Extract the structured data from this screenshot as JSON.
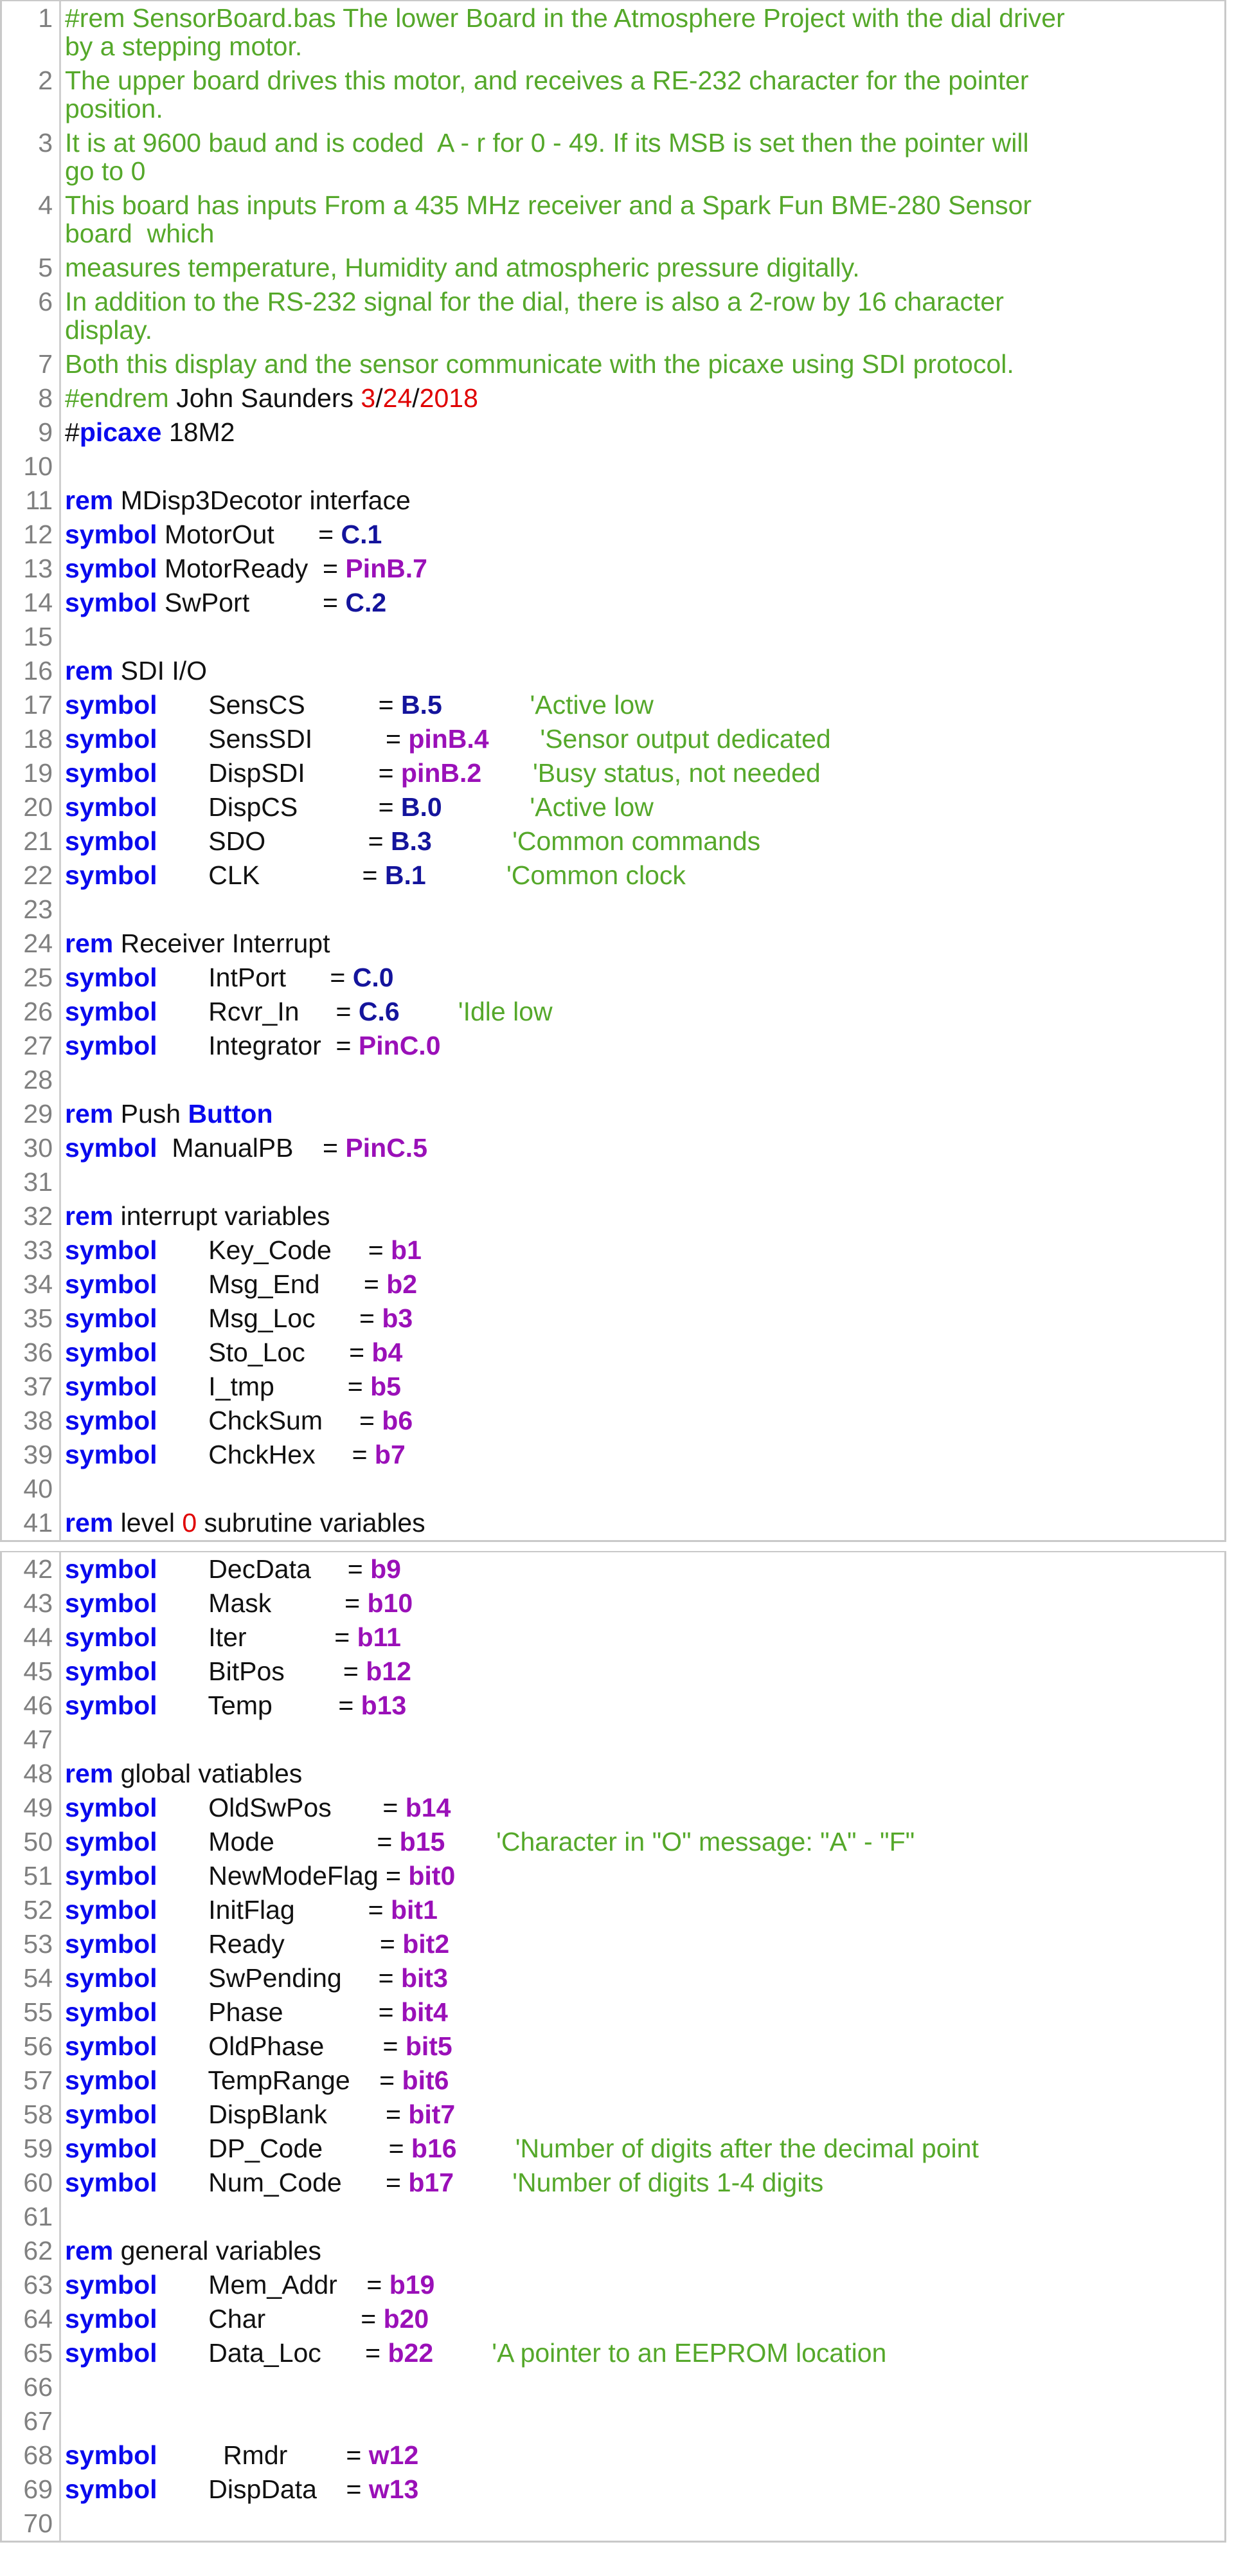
{
  "colors": {
    "comment": "#55a82a",
    "keyword": "#0a0aee",
    "variable": "#9a10b8",
    "pin": "#14149c",
    "number": "#e00000",
    "line_number": "#808080"
  },
  "panels": [
    {
      "lines": [
        {
          "n": "1",
          "tokens": [
            [
              "c",
              "#rem SensorBoard.bas The lower Board in the Atmosphere Project with the dial driver\nby a stepping motor."
            ]
          ]
        },
        {
          "n": "2",
          "tokens": [
            [
              "c",
              "The upper board drives this motor, and receives a RE-232 character for the pointer\nposition."
            ]
          ]
        },
        {
          "n": "3",
          "tokens": [
            [
              "c",
              "It is at 9600 baud and is coded  A - r for 0 - 49. If its MSB is set then the pointer will\ngo to 0"
            ]
          ]
        },
        {
          "n": "4",
          "tokens": [
            [
              "c",
              "This board has inputs From a 435 MHz receiver and a Spark Fun BME-280 Sensor\nboard  which"
            ]
          ]
        },
        {
          "n": "5",
          "tokens": [
            [
              "c",
              "measures temperature, Humidity and atmospheric pressure digitally."
            ]
          ]
        },
        {
          "n": "6",
          "tokens": [
            [
              "c",
              "In addition to the RS-232 signal for the dial, there is also a 2-row by 16 character\ndisplay."
            ]
          ]
        },
        {
          "n": "7",
          "tokens": [
            [
              "c",
              "Both this display and the sensor communicate with the picaxe using SDI protocol."
            ]
          ]
        },
        {
          "n": "8",
          "tokens": [
            [
              "c",
              "#endrem"
            ],
            [
              "t",
              " John Saunders "
            ],
            [
              "r",
              "3"
            ],
            [
              "t",
              "/"
            ],
            [
              "r",
              "24"
            ],
            [
              "t",
              "/"
            ],
            [
              "r",
              "2018"
            ]
          ]
        },
        {
          "n": "9",
          "tokens": [
            [
              "t",
              "#"
            ],
            [
              "k",
              "picaxe"
            ],
            [
              "t",
              " 18M2"
            ]
          ]
        },
        {
          "n": "10",
          "tokens": []
        },
        {
          "n": "11",
          "tokens": [
            [
              "k",
              "rem"
            ],
            [
              "t",
              " MDisp3Decotor interface"
            ]
          ]
        },
        {
          "n": "12",
          "tokens": [
            [
              "k",
              "symbol"
            ],
            [
              "t",
              " MotorOut      = "
            ],
            [
              "n",
              "C.1"
            ]
          ]
        },
        {
          "n": "13",
          "tokens": [
            [
              "k",
              "symbol"
            ],
            [
              "t",
              " MotorReady  = "
            ],
            [
              "p",
              "PinB.7"
            ]
          ]
        },
        {
          "n": "14",
          "tokens": [
            [
              "k",
              "symbol"
            ],
            [
              "t",
              " SwPort          = "
            ],
            [
              "n",
              "C.2"
            ]
          ]
        },
        {
          "n": "15",
          "tokens": []
        },
        {
          "n": "16",
          "tokens": [
            [
              "k",
              "rem"
            ],
            [
              "t",
              " SDI I/O"
            ]
          ]
        },
        {
          "n": "17",
          "tokens": [
            [
              "k",
              "symbol"
            ],
            [
              "t",
              "       SensCS          = "
            ],
            [
              "n",
              "B.5"
            ],
            [
              "c",
              "            'Active low"
            ]
          ]
        },
        {
          "n": "18",
          "tokens": [
            [
              "k",
              "symbol"
            ],
            [
              "t",
              "       SensSDI          = "
            ],
            [
              "p",
              "pinB.4"
            ],
            [
              "c",
              "       'Sensor output dedicated"
            ]
          ]
        },
        {
          "n": "19",
          "tokens": [
            [
              "k",
              "symbol"
            ],
            [
              "t",
              "       DispSDI          = "
            ],
            [
              "p",
              "pinB.2"
            ],
            [
              "c",
              "       'Busy status, not needed"
            ]
          ]
        },
        {
          "n": "20",
          "tokens": [
            [
              "k",
              "symbol"
            ],
            [
              "t",
              "       DispCS           = "
            ],
            [
              "n",
              "B.0"
            ],
            [
              "c",
              "            'Active low"
            ]
          ]
        },
        {
          "n": "21",
          "tokens": [
            [
              "k",
              "symbol"
            ],
            [
              "t",
              "       SDO              = "
            ],
            [
              "n",
              "B.3"
            ],
            [
              "c",
              "           'Common commands"
            ]
          ]
        },
        {
          "n": "22",
          "tokens": [
            [
              "k",
              "symbol"
            ],
            [
              "t",
              "       CLK              = "
            ],
            [
              "n",
              "B.1"
            ],
            [
              "c",
              "           'Common clock"
            ]
          ]
        },
        {
          "n": "23",
          "tokens": []
        },
        {
          "n": "24",
          "tokens": [
            [
              "k",
              "rem"
            ],
            [
              "t",
              " Receiver Interrupt"
            ]
          ]
        },
        {
          "n": "25",
          "tokens": [
            [
              "k",
              "symbol"
            ],
            [
              "t",
              "       IntPort      = "
            ],
            [
              "n",
              "C.0"
            ]
          ]
        },
        {
          "n": "26",
          "tokens": [
            [
              "k",
              "symbol"
            ],
            [
              "t",
              "       Rcvr_In     = "
            ],
            [
              "n",
              "C.6"
            ],
            [
              "c",
              "        'Idle low"
            ]
          ]
        },
        {
          "n": "27",
          "tokens": [
            [
              "k",
              "symbol"
            ],
            [
              "t",
              "       Integrator  = "
            ],
            [
              "p",
              "PinC.0"
            ]
          ]
        },
        {
          "n": "28",
          "tokens": []
        },
        {
          "n": "29",
          "tokens": [
            [
              "k",
              "rem"
            ],
            [
              "t",
              " Push "
            ],
            [
              "k",
              "Button"
            ]
          ]
        },
        {
          "n": "30",
          "tokens": [
            [
              "k",
              "symbol"
            ],
            [
              "t",
              "  ManualPB    = "
            ],
            [
              "p",
              "PinC.5"
            ]
          ]
        },
        {
          "n": "31",
          "tokens": []
        },
        {
          "n": "32",
          "tokens": [
            [
              "k",
              "rem"
            ],
            [
              "t",
              " interrupt variables"
            ]
          ]
        },
        {
          "n": "33",
          "tokens": [
            [
              "k",
              "symbol"
            ],
            [
              "t",
              "       Key_Code     = "
            ],
            [
              "p",
              "b1"
            ]
          ]
        },
        {
          "n": "34",
          "tokens": [
            [
              "k",
              "symbol"
            ],
            [
              "t",
              "       Msg_End      = "
            ],
            [
              "p",
              "b2"
            ]
          ]
        },
        {
          "n": "35",
          "tokens": [
            [
              "k",
              "symbol"
            ],
            [
              "t",
              "       Msg_Loc      = "
            ],
            [
              "p",
              "b3"
            ]
          ]
        },
        {
          "n": "36",
          "tokens": [
            [
              "k",
              "symbol"
            ],
            [
              "t",
              "       Sto_Loc      = "
            ],
            [
              "p",
              "b4"
            ]
          ]
        },
        {
          "n": "37",
          "tokens": [
            [
              "k",
              "symbol"
            ],
            [
              "t",
              "       I_tmp          = "
            ],
            [
              "p",
              "b5"
            ]
          ]
        },
        {
          "n": "38",
          "tokens": [
            [
              "k",
              "symbol"
            ],
            [
              "t",
              "       ChckSum     = "
            ],
            [
              "p",
              "b6"
            ]
          ]
        },
        {
          "n": "39",
          "tokens": [
            [
              "k",
              "symbol"
            ],
            [
              "t",
              "       ChckHex     = "
            ],
            [
              "p",
              "b7"
            ]
          ]
        },
        {
          "n": "40",
          "tokens": []
        },
        {
          "n": "41",
          "tokens": [
            [
              "k",
              "rem"
            ],
            [
              "t",
              " level "
            ],
            [
              "r",
              "0"
            ],
            [
              "t",
              " subrutine variables"
            ]
          ]
        }
      ]
    },
    {
      "lines": [
        {
          "n": "42",
          "tokens": [
            [
              "k",
              "symbol"
            ],
            [
              "t",
              "       DecData     = "
            ],
            [
              "p",
              "b9"
            ]
          ]
        },
        {
          "n": "43",
          "tokens": [
            [
              "k",
              "symbol"
            ],
            [
              "t",
              "       Mask          = "
            ],
            [
              "p",
              "b10"
            ]
          ]
        },
        {
          "n": "44",
          "tokens": [
            [
              "k",
              "symbol"
            ],
            [
              "t",
              "       Iter            = "
            ],
            [
              "p",
              "b11"
            ]
          ]
        },
        {
          "n": "45",
          "tokens": [
            [
              "k",
              "symbol"
            ],
            [
              "t",
              "       BitPos        = "
            ],
            [
              "p",
              "b12"
            ]
          ]
        },
        {
          "n": "46",
          "tokens": [
            [
              "k",
              "symbol"
            ],
            [
              "t",
              "       Temp         = "
            ],
            [
              "p",
              "b13"
            ]
          ]
        },
        {
          "n": "47",
          "tokens": []
        },
        {
          "n": "48",
          "tokens": [
            [
              "k",
              "rem"
            ],
            [
              "t",
              " global vatiables"
            ]
          ]
        },
        {
          "n": "49",
          "tokens": [
            [
              "k",
              "symbol"
            ],
            [
              "t",
              "       OldSwPos       = "
            ],
            [
              "p",
              "b14"
            ]
          ]
        },
        {
          "n": "50",
          "tokens": [
            [
              "k",
              "symbol"
            ],
            [
              "t",
              "       Mode              = "
            ],
            [
              "p",
              "b15"
            ],
            [
              "c",
              "       'Character in \"O\" message: \"A\" - \"F\""
            ]
          ]
        },
        {
          "n": "51",
          "tokens": [
            [
              "k",
              "symbol"
            ],
            [
              "t",
              "       NewModeFlag = "
            ],
            [
              "p",
              "bit0"
            ]
          ]
        },
        {
          "n": "52",
          "tokens": [
            [
              "k",
              "symbol"
            ],
            [
              "t",
              "       InitFlag          = "
            ],
            [
              "p",
              "bit1"
            ]
          ]
        },
        {
          "n": "53",
          "tokens": [
            [
              "k",
              "symbol"
            ],
            [
              "t",
              "       Ready             = "
            ],
            [
              "p",
              "bit2"
            ]
          ]
        },
        {
          "n": "54",
          "tokens": [
            [
              "k",
              "symbol"
            ],
            [
              "t",
              "       SwPending     = "
            ],
            [
              "p",
              "bit3"
            ]
          ]
        },
        {
          "n": "55",
          "tokens": [
            [
              "k",
              "symbol"
            ],
            [
              "t",
              "       Phase             = "
            ],
            [
              "p",
              "bit4"
            ]
          ]
        },
        {
          "n": "56",
          "tokens": [
            [
              "k",
              "symbol"
            ],
            [
              "t",
              "       OldPhase        = "
            ],
            [
              "p",
              "bit5"
            ]
          ]
        },
        {
          "n": "57",
          "tokens": [
            [
              "k",
              "symbol"
            ],
            [
              "t",
              "       TempRange    = "
            ],
            [
              "p",
              "bit6"
            ]
          ]
        },
        {
          "n": "58",
          "tokens": [
            [
              "k",
              "symbol"
            ],
            [
              "t",
              "       DispBlank        = "
            ],
            [
              "p",
              "bit7"
            ]
          ]
        },
        {
          "n": "59",
          "tokens": [
            [
              "k",
              "symbol"
            ],
            [
              "t",
              "       DP_Code         = "
            ],
            [
              "p",
              "b16"
            ],
            [
              "c",
              "        'Number of digits after the decimal point"
            ]
          ]
        },
        {
          "n": "60",
          "tokens": [
            [
              "k",
              "symbol"
            ],
            [
              "t",
              "       Num_Code      = "
            ],
            [
              "p",
              "b17"
            ],
            [
              "c",
              "        'Number of digits 1-4 digits"
            ]
          ]
        },
        {
          "n": "61",
          "tokens": []
        },
        {
          "n": "62",
          "tokens": [
            [
              "k",
              "rem"
            ],
            [
              "t",
              " general variables"
            ]
          ]
        },
        {
          "n": "63",
          "tokens": [
            [
              "k",
              "symbol"
            ],
            [
              "t",
              "       Mem_Addr    = "
            ],
            [
              "p",
              "b19"
            ]
          ]
        },
        {
          "n": "64",
          "tokens": [
            [
              "k",
              "symbol"
            ],
            [
              "t",
              "       Char             = "
            ],
            [
              "p",
              "b20"
            ]
          ]
        },
        {
          "n": "65",
          "tokens": [
            [
              "k",
              "symbol"
            ],
            [
              "t",
              "       Data_Loc      = "
            ],
            [
              "p",
              "b22"
            ],
            [
              "c",
              "        'A pointer to an EEPROM location"
            ]
          ]
        },
        {
          "n": "66",
          "tokens": []
        },
        {
          "n": "67",
          "tokens": []
        },
        {
          "n": "68",
          "tokens": [
            [
              "k",
              "symbol"
            ],
            [
              "t",
              "         Rmdr        = "
            ],
            [
              "p",
              "w12"
            ]
          ]
        },
        {
          "n": "69",
          "tokens": [
            [
              "k",
              "symbol"
            ],
            [
              "t",
              "       DispData    = "
            ],
            [
              "p",
              "w13"
            ]
          ]
        },
        {
          "n": "70",
          "tokens": []
        }
      ]
    }
  ]
}
